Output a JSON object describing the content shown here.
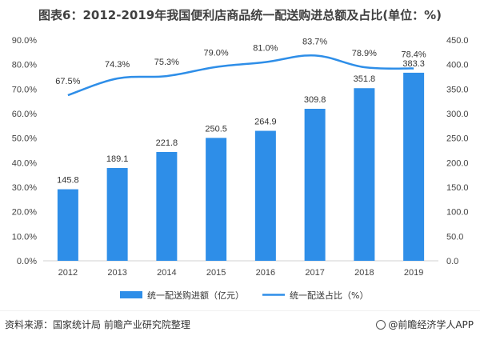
{
  "title": "图表6：2012-2019年我国便利店商品统一配送购进总额及占比(单位：%)",
  "footer": {
    "source": "资料来源：国家统计局 前瞻产业研究院整理",
    "brand": "@前瞻经济学人APP"
  },
  "colors": {
    "bar": "#2e8ee8",
    "line": "#2e8ee8"
  },
  "chart_data": {
    "type": "bar+line",
    "categories": [
      "2012",
      "2013",
      "2014",
      "2015",
      "2016",
      "2017",
      "2018",
      "2019"
    ],
    "series": [
      {
        "name": "统一配送购进额（亿元）",
        "type": "bar",
        "axis": "right",
        "values": [
          145.8,
          189.1,
          221.8,
          250.5,
          264.9,
          309.8,
          351.8,
          383.3
        ],
        "labels": [
          "145.8",
          "189.1",
          "221.8",
          "250.5",
          "264.9",
          "309.8",
          "351.8",
          "383.3"
        ]
      },
      {
        "name": "统一配送占比（%）",
        "type": "line",
        "axis": "left",
        "values": [
          67.5,
          74.3,
          75.3,
          79.0,
          81.0,
          83.7,
          78.9,
          78.4
        ],
        "labels": [
          "67.5%",
          "74.3%",
          "75.3%",
          "79.0%",
          "81.0%",
          "83.7%",
          "78.9%",
          "78.4%"
        ]
      }
    ],
    "left_axis": {
      "min": 0,
      "max": 90,
      "step": 10,
      "ticks": [
        "0.0%",
        "10.0%",
        "20.0%",
        "30.0%",
        "40.0%",
        "50.0%",
        "60.0%",
        "70.0%",
        "80.0%",
        "90.0%"
      ]
    },
    "right_axis": {
      "min": 0,
      "max": 450,
      "step": 50,
      "ticks": [
        "0.0",
        "50.0",
        "100.0",
        "150.0",
        "200.0",
        "250.0",
        "300.0",
        "350.0",
        "400.0",
        "450.0"
      ]
    },
    "grid": false,
    "legend": "bottom"
  }
}
